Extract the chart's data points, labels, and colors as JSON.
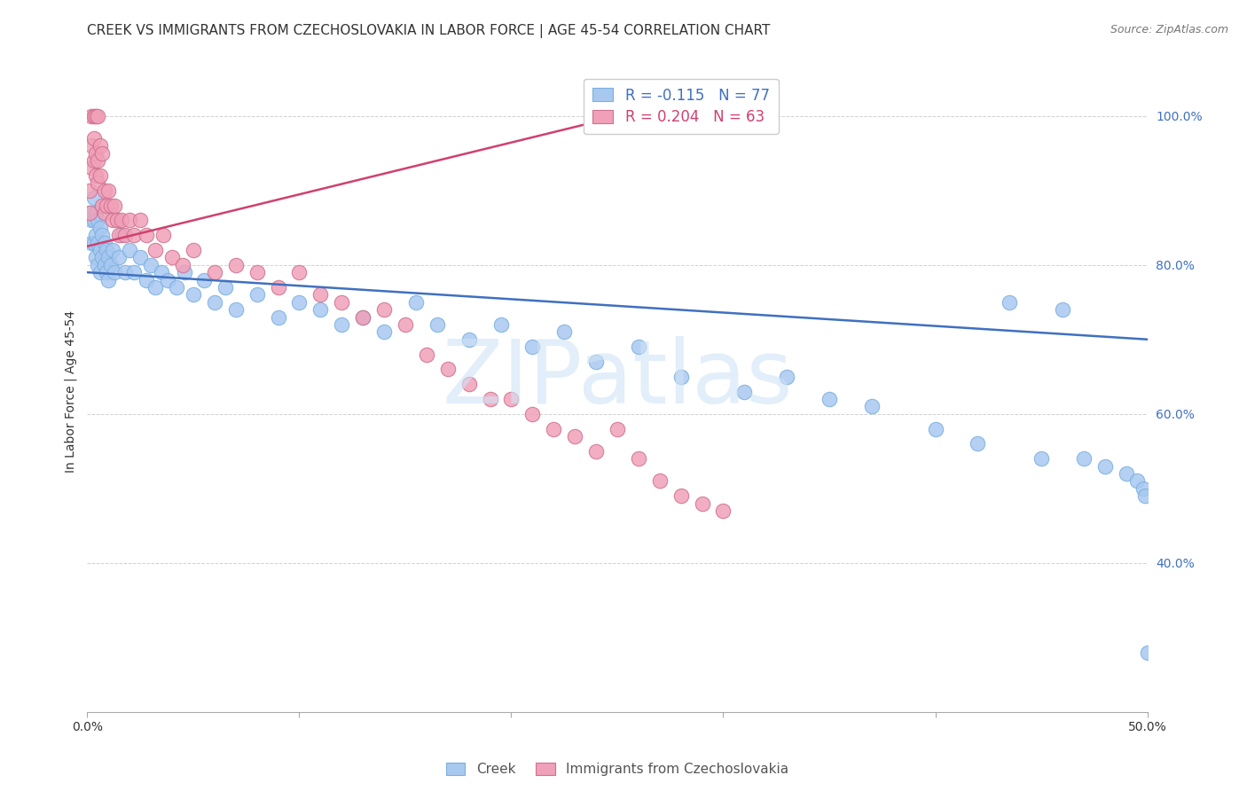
{
  "title": "CREEK VS IMMIGRANTS FROM CZECHOSLOVAKIA IN LABOR FORCE | AGE 45-54 CORRELATION CHART",
  "source": "Source: ZipAtlas.com",
  "ylabel": "In Labor Force | Age 45-54",
  "x_min": 0.0,
  "x_max": 0.5,
  "y_min": 0.2,
  "y_max": 1.06,
  "yticks": [
    0.4,
    0.6,
    0.8,
    1.0
  ],
  "ytick_labels": [
    "40.0%",
    "60.0%",
    "80.0%",
    "100.0%"
  ],
  "xticks": [
    0.0,
    0.1,
    0.2,
    0.3,
    0.4,
    0.5
  ],
  "xtick_labels": [
    "0.0%",
    "",
    "",
    "",
    "",
    "50.0%"
  ],
  "grid_color": "#cccccc",
  "background_color": "#ffffff",
  "creek_color": "#a8c8f0",
  "creek_edge": "#7ab0e0",
  "creek_line": "#4070c0",
  "imm_color": "#f0a0b8",
  "imm_edge": "#d07090",
  "imm_line": "#d04070",
  "creek_R": "-0.115",
  "creek_N": "77",
  "imm_R": "0.204",
  "imm_N": "63",
  "creek_trend_x0": 0.0,
  "creek_trend_x1": 0.5,
  "creek_trend_y0": 0.79,
  "creek_trend_y1": 0.7,
  "imm_trend_x0": 0.0,
  "imm_trend_x1": 0.28,
  "imm_trend_y0": 0.825,
  "imm_trend_y1": 1.02,
  "creek_x": [
    0.001,
    0.002,
    0.002,
    0.003,
    0.003,
    0.003,
    0.004,
    0.004,
    0.004,
    0.005,
    0.005,
    0.005,
    0.006,
    0.006,
    0.006,
    0.007,
    0.007,
    0.008,
    0.008,
    0.009,
    0.009,
    0.01,
    0.01,
    0.011,
    0.012,
    0.013,
    0.014,
    0.015,
    0.016,
    0.018,
    0.02,
    0.022,
    0.025,
    0.028,
    0.03,
    0.032,
    0.035,
    0.038,
    0.042,
    0.046,
    0.05,
    0.055,
    0.06,
    0.065,
    0.07,
    0.08,
    0.09,
    0.1,
    0.11,
    0.12,
    0.13,
    0.14,
    0.155,
    0.165,
    0.18,
    0.195,
    0.21,
    0.225,
    0.24,
    0.26,
    0.28,
    0.31,
    0.33,
    0.35,
    0.37,
    0.4,
    0.42,
    0.435,
    0.45,
    0.46,
    0.47,
    0.48,
    0.49,
    0.495,
    0.498,
    0.499,
    0.5
  ],
  "creek_y": [
    0.87,
    0.86,
    0.83,
    0.89,
    0.86,
    0.83,
    0.87,
    0.84,
    0.81,
    0.86,
    0.83,
    0.8,
    0.85,
    0.82,
    0.79,
    0.84,
    0.81,
    0.83,
    0.8,
    0.82,
    0.79,
    0.81,
    0.78,
    0.8,
    0.82,
    0.79,
    0.86,
    0.81,
    0.84,
    0.79,
    0.82,
    0.79,
    0.81,
    0.78,
    0.8,
    0.77,
    0.79,
    0.78,
    0.77,
    0.79,
    0.76,
    0.78,
    0.75,
    0.77,
    0.74,
    0.76,
    0.73,
    0.75,
    0.74,
    0.72,
    0.73,
    0.71,
    0.75,
    0.72,
    0.7,
    0.72,
    0.69,
    0.71,
    0.67,
    0.69,
    0.65,
    0.63,
    0.65,
    0.62,
    0.61,
    0.58,
    0.56,
    0.75,
    0.54,
    0.74,
    0.54,
    0.53,
    0.52,
    0.51,
    0.5,
    0.49,
    0.28
  ],
  "imm_x": [
    0.001,
    0.001,
    0.002,
    0.002,
    0.002,
    0.003,
    0.003,
    0.003,
    0.004,
    0.004,
    0.004,
    0.005,
    0.005,
    0.005,
    0.006,
    0.006,
    0.007,
    0.007,
    0.008,
    0.008,
    0.009,
    0.01,
    0.011,
    0.012,
    0.013,
    0.014,
    0.015,
    0.016,
    0.018,
    0.02,
    0.022,
    0.025,
    0.028,
    0.032,
    0.036,
    0.04,
    0.045,
    0.05,
    0.06,
    0.07,
    0.08,
    0.09,
    0.1,
    0.11,
    0.12,
    0.13,
    0.14,
    0.15,
    0.16,
    0.17,
    0.18,
    0.19,
    0.2,
    0.21,
    0.22,
    0.23,
    0.24,
    0.25,
    0.26,
    0.27,
    0.28,
    0.29,
    0.3
  ],
  "imm_y": [
    0.87,
    0.9,
    0.93,
    0.96,
    1.0,
    0.97,
    0.94,
    1.0,
    0.95,
    0.92,
    1.0,
    0.94,
    0.91,
    1.0,
    0.96,
    0.92,
    0.95,
    0.88,
    0.9,
    0.87,
    0.88,
    0.9,
    0.88,
    0.86,
    0.88,
    0.86,
    0.84,
    0.86,
    0.84,
    0.86,
    0.84,
    0.86,
    0.84,
    0.82,
    0.84,
    0.81,
    0.8,
    0.82,
    0.79,
    0.8,
    0.79,
    0.77,
    0.79,
    0.76,
    0.75,
    0.73,
    0.74,
    0.72,
    0.68,
    0.66,
    0.64,
    0.62,
    0.62,
    0.6,
    0.58,
    0.57,
    0.55,
    0.58,
    0.54,
    0.51,
    0.49,
    0.48,
    0.47
  ],
  "watermark_text": "ZIPatlas",
  "watermark_color": "#d0e4f5",
  "title_fontsize": 11,
  "tick_fontsize": 10,
  "label_fontsize": 10,
  "source_fontsize": 9
}
